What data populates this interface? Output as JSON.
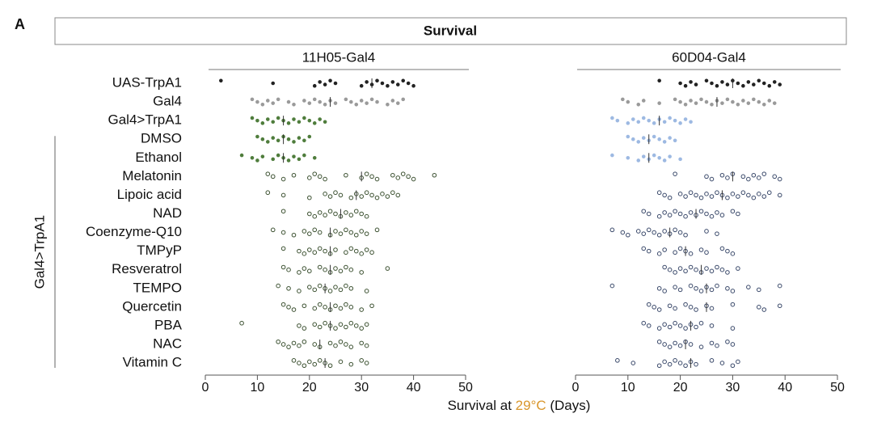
{
  "panel_label": "A",
  "chart_data": {
    "type": "strip",
    "title": "Survival",
    "xlabel": {
      "before": "Survival at ",
      "highlight": "29°C",
      "after": " (Days)"
    },
    "highlight_color": "#d9962b",
    "group_label": "Gal4>TrpA1",
    "group_from": 3,
    "categories": [
      "UAS-TrpA1",
      "Gal4",
      "Gal4>TrpA1",
      "DMSO",
      "Ethanol",
      "Melatonin",
      "Lipoic acid",
      "NAD",
      "Coenzyme-Q10",
      "TMPyP",
      "Resveratrol",
      "TEMPO",
      "Quercetin",
      "PBA",
      "NAC",
      "Vitamin C"
    ],
    "filled": [
      true,
      true,
      true,
      true,
      true,
      false,
      false,
      false,
      false,
      false,
      false,
      false,
      false,
      false,
      false,
      false
    ],
    "panels": [
      {
        "title": "11H05-Gal4",
        "xlim": [
          0,
          50
        ],
        "xticks": [
          0,
          10,
          20,
          30,
          40,
          50
        ],
        "colors": [
          "#222222",
          "#9a9a9a",
          "#4f7d3c",
          "#4f7d3c",
          "#4f7d3c",
          "#3d5232",
          "#3d5232",
          "#3d5232",
          "#3d5232",
          "#3d5232",
          "#3d5232",
          "#3d5232",
          "#3d5232",
          "#3d5232",
          "#3d5232",
          "#3d5232"
        ],
        "values": [
          [
            3,
            13,
            21,
            22,
            23,
            24,
            25,
            30,
            31,
            32,
            33,
            34,
            35,
            36,
            37,
            38,
            39,
            40
          ],
          [
            9,
            10,
            11,
            12,
            13,
            14,
            16,
            17,
            19,
            20,
            21,
            22,
            23,
            24,
            25,
            27,
            28,
            29,
            30,
            31,
            32,
            33,
            35,
            36,
            37,
            38
          ],
          [
            9,
            10,
            11,
            12,
            13,
            14,
            15,
            16,
            17,
            18,
            19,
            20,
            21,
            22,
            23
          ],
          [
            10,
            11,
            12,
            13,
            14,
            15,
            16,
            17,
            18,
            19,
            20
          ],
          [
            7,
            9,
            10,
            11,
            13,
            14,
            15,
            16,
            17,
            18,
            19,
            21
          ],
          [
            12,
            13,
            15,
            17,
            20,
            21,
            22,
            23,
            27,
            30,
            31,
            32,
            33,
            36,
            37,
            38,
            39,
            40,
            44
          ],
          [
            12,
            15,
            20,
            23,
            24,
            25,
            26,
            28,
            29,
            30,
            31,
            32,
            33,
            34,
            35,
            36,
            37
          ],
          [
            15,
            20,
            21,
            22,
            23,
            24,
            25,
            26,
            27,
            28,
            29,
            30,
            31
          ],
          [
            13,
            15,
            17,
            19,
            20,
            21,
            22,
            24,
            25,
            26,
            27,
            28,
            29,
            30,
            31,
            33
          ],
          [
            15,
            18,
            19,
            20,
            21,
            22,
            23,
            24,
            25,
            27,
            28,
            29,
            30,
            31,
            32
          ],
          [
            15,
            16,
            18,
            19,
            20,
            22,
            23,
            24,
            25,
            26,
            27,
            28,
            30,
            35
          ],
          [
            14,
            16,
            18,
            20,
            21,
            22,
            23,
            24,
            25,
            26,
            27,
            28,
            31
          ],
          [
            15,
            16,
            17,
            19,
            21,
            22,
            23,
            24,
            25,
            26,
            27,
            28,
            30,
            32
          ],
          [
            7,
            18,
            19,
            21,
            22,
            23,
            24,
            25,
            26,
            27,
            28,
            29,
            30,
            31
          ],
          [
            14,
            15,
            16,
            17,
            18,
            19,
            21,
            22,
            24,
            25,
            26,
            27,
            28,
            30,
            31
          ],
          [
            17,
            18,
            19,
            20,
            21,
            22,
            23,
            24,
            26,
            28,
            30,
            31
          ]
        ],
        "means": [
          32,
          24,
          15,
          15,
          15,
          30,
          29,
          26,
          24,
          24,
          24,
          23,
          24,
          24,
          22,
          23
        ]
      },
      {
        "title": "60D04-Gal4",
        "xlim": [
          0,
          50
        ],
        "xticks": [
          0,
          10,
          20,
          30,
          40,
          50
        ],
        "colors": [
          "#222222",
          "#9a9a9a",
          "#9db9e2",
          "#9db9e2",
          "#9db9e2",
          "#3b4a6b",
          "#3b4a6b",
          "#3b4a6b",
          "#3b4a6b",
          "#3b4a6b",
          "#3b4a6b",
          "#3b4a6b",
          "#3b4a6b",
          "#3b4a6b",
          "#3b4a6b",
          "#3b4a6b"
        ],
        "values": [
          [
            16,
            20,
            21,
            22,
            23,
            25,
            26,
            27,
            28,
            29,
            30,
            31,
            32,
            33,
            34,
            35,
            36,
            37,
            38,
            39
          ],
          [
            9,
            10,
            12,
            13,
            16,
            19,
            20,
            21,
            22,
            23,
            24,
            25,
            26,
            27,
            28,
            29,
            30,
            31,
            32,
            33,
            34,
            35,
            36,
            37,
            38
          ],
          [
            7,
            8,
            10,
            11,
            12,
            13,
            14,
            15,
            16,
            17,
            18,
            19,
            20,
            21,
            22
          ],
          [
            10,
            11,
            12,
            13,
            14,
            15,
            16,
            17,
            18,
            19
          ],
          [
            7,
            10,
            12,
            13,
            14,
            15,
            16,
            17,
            18,
            20
          ],
          [
            19,
            25,
            26,
            28,
            29,
            30,
            32,
            33,
            34,
            35,
            36,
            38,
            39
          ],
          [
            16,
            17,
            18,
            20,
            21,
            22,
            23,
            24,
            25,
            26,
            27,
            28,
            29,
            30,
            31,
            32,
            33,
            34,
            35,
            36,
            37,
            39
          ],
          [
            13,
            14,
            16,
            17,
            18,
            19,
            20,
            21,
            22,
            23,
            24,
            25,
            26,
            27,
            28,
            30,
            31
          ],
          [
            7,
            9,
            10,
            12,
            13,
            14,
            15,
            16,
            17,
            18,
            19,
            20,
            21,
            25,
            27
          ],
          [
            13,
            14,
            16,
            17,
            19,
            20,
            21,
            22,
            24,
            25,
            28,
            29,
            30
          ],
          [
            17,
            18,
            19,
            20,
            21,
            22,
            23,
            24,
            25,
            26,
            27,
            28,
            29,
            31
          ],
          [
            7,
            16,
            17,
            19,
            20,
            22,
            23,
            24,
            25,
            26,
            27,
            29,
            30,
            33,
            35,
            39
          ],
          [
            14,
            15,
            16,
            18,
            19,
            21,
            22,
            23,
            25,
            26,
            30,
            35,
            36,
            39
          ],
          [
            13,
            14,
            16,
            17,
            18,
            19,
            20,
            21,
            22,
            23,
            24,
            26,
            30
          ],
          [
            16,
            17,
            18,
            19,
            20,
            21,
            22,
            24,
            26,
            27,
            29,
            30
          ],
          [
            8,
            11,
            16,
            17,
            18,
            19,
            20,
            21,
            22,
            23,
            26,
            28,
            30,
            31
          ]
        ],
        "means": [
          30,
          27,
          16,
          14,
          14,
          30,
          28,
          23,
          18,
          21,
          24,
          25,
          25,
          22,
          21,
          22
        ]
      }
    ]
  }
}
